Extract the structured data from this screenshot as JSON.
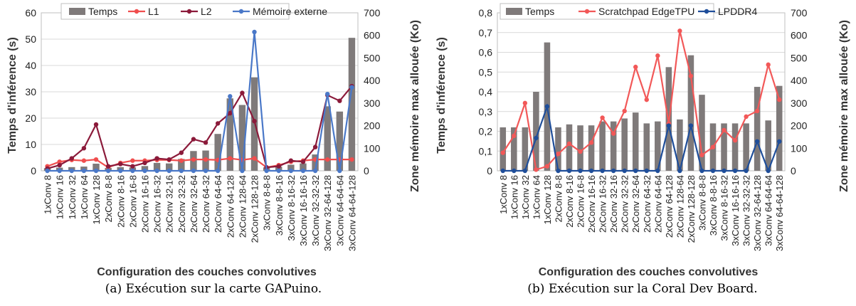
{
  "chart_data": [
    {
      "type": "bar",
      "panel": "a",
      "caption": "(a) Exécution sur la carte GAPuino.",
      "xlabel": "Configuration des couches convolutives",
      "ylabel": "Temps d'inférence (s)",
      "y2label": "Zone mémoire max allouée (Ko)",
      "ylim": [
        0,
        60
      ],
      "yticks": [
        0,
        10,
        20,
        30,
        40,
        50,
        60
      ],
      "y2lim": [
        0,
        700
      ],
      "y2ticks": [
        0,
        100,
        200,
        300,
        400,
        500,
        600,
        700
      ],
      "legend_position": "top",
      "grid": true,
      "categories": [
        "1xConv 8",
        "1xConv 16",
        "1xConv 32",
        "1xConv 64",
        "1xConv 128",
        "2xConv 8-8",
        "2xConv 8-16",
        "2xConv 16-8",
        "2xConv 16-16",
        "2xConv 16-32",
        "2xConv 32-16",
        "2xConv 32-32",
        "2xConv 32-64",
        "2xConv 64-32",
        "2xConv 64-64",
        "2xConv 64-128",
        "2xConv 128-64",
        "2xConv 128-128",
        "3xConv 8-8-8",
        "3xConv 8-8-16",
        "3xConv 8-16-32",
        "3xConv 16-16-16",
        "3xConv 32-32-32",
        "3xConv 32-64-128",
        "3xConv 64-64-64",
        "3xConv 64-64-128"
      ],
      "series": [
        {
          "name": "Temps",
          "kind": "bar",
          "axis": "left",
          "color": "#7f7a7a",
          "values": [
            1.0,
            1.2,
            1.4,
            1.6,
            2.7,
            1.1,
            1.4,
            1.3,
            1.8,
            3.0,
            2.8,
            4.5,
            7.5,
            7.7,
            14,
            27.5,
            25,
            35.5,
            1.3,
            1.6,
            2.3,
            2.8,
            6.2,
            24.5,
            22.5,
            50.5
          ]
        },
        {
          "name": "L1",
          "kind": "line",
          "axis": "right",
          "color": "#f04e4e",
          "values": [
            20,
            40,
            48,
            45,
            50,
            15,
            35,
            45,
            45,
            48,
            48,
            45,
            50,
            50,
            48,
            55,
            48,
            55,
            15,
            25,
            40,
            45,
            50,
            50,
            50,
            50
          ]
        },
        {
          "name": "L2",
          "kind": "line",
          "axis": "right",
          "color": "#8b1a3a",
          "values": [
            10,
            25,
            55,
            100,
            205,
            20,
            30,
            20,
            35,
            55,
            50,
            80,
            140,
            125,
            210,
            255,
            345,
            220,
            15,
            20,
            45,
            40,
            105,
            335,
            310,
            375
          ]
        },
        {
          "name": "Mémoire externe",
          "kind": "line",
          "axis": "right",
          "color": "#4a78c8",
          "values": [
            0,
            0,
            0,
            0,
            0,
            0,
            0,
            0,
            0,
            0,
            0,
            0,
            0,
            0,
            0,
            330,
            0,
            615,
            0,
            0,
            0,
            0,
            0,
            340,
            0,
            370
          ]
        }
      ]
    },
    {
      "type": "bar",
      "panel": "b",
      "caption": "(b) Exécution sur la Coral Dev Board.",
      "xlabel": "Configuration des couches convolutives",
      "ylabel": "Temps d'inférence (s)",
      "y2label": "Zone mémoire max allouée (Ko)",
      "ylim": [
        0,
        0.8
      ],
      "yticks": [
        "0",
        "0,1",
        "0,2",
        "0,3",
        "0,4",
        "0,5",
        "0,6",
        "0,7",
        "0,8"
      ],
      "y2lim": [
        0,
        700
      ],
      "y2ticks": [
        0,
        100,
        200,
        300,
        400,
        500,
        600,
        700
      ],
      "legend_position": "top",
      "grid": true,
      "categories": [
        "1xConv 8",
        "1xConv 16",
        "1xConv 32",
        "1xConv 64",
        "1xConv 128",
        "2xConv 8-8",
        "2xConv 8-16",
        "2xConv 16-8",
        "2xConv 16-16",
        "2xConv 16-32",
        "2xConv 32-16",
        "2xConv 32-32",
        "2xConv 32-64",
        "2xConv 64-32",
        "2xConv 64-64",
        "2xConv 64-128",
        "2xConv 128-64",
        "2xConv 128-128",
        "3xConv 8-8-8",
        "3xConv 8-8-16",
        "3xConv 8-16-32",
        "3xConv 16-16-16",
        "3xConv 32-32-32",
        "3xConv 32-64-128",
        "3xConv 64-64-64",
        "3xConv 64-64-128"
      ],
      "series": [
        {
          "name": "Temps",
          "kind": "bar",
          "axis": "left",
          "color": "#7f7a7a",
          "values": [
            0.22,
            0.22,
            0.22,
            0.4,
            0.65,
            0.22,
            0.235,
            0.23,
            0.23,
            0.25,
            0.25,
            0.265,
            0.295,
            0.24,
            0.25,
            0.525,
            0.26,
            0.585,
            0.385,
            0.24,
            0.24,
            0.24,
            0.24,
            0.425,
            0.255,
            0.43
          ]
        },
        {
          "name": "Scratchpad EdgeTPU",
          "kind": "line",
          "axis": "right",
          "color": "#f25858",
          "values": [
            80,
            155,
            300,
            5,
            20,
            75,
            120,
            85,
            125,
            235,
            165,
            265,
            460,
            315,
            510,
            210,
            620,
            420,
            70,
            105,
            180,
            135,
            240,
            265,
            470,
            315
          ]
        },
        {
          "name": "LPDDR4",
          "kind": "line",
          "axis": "right",
          "color": "#1f4e9a",
          "values": [
            0,
            0,
            0,
            145,
            285,
            0,
            0,
            0,
            0,
            0,
            0,
            0,
            0,
            0,
            0,
            200,
            0,
            200,
            0,
            0,
            0,
            0,
            0,
            130,
            0,
            130
          ]
        }
      ]
    }
  ]
}
